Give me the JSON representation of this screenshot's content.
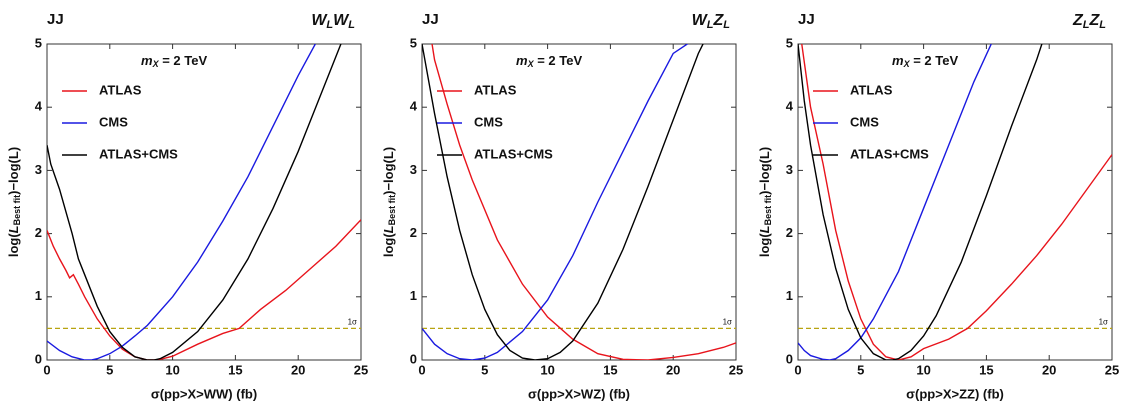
{
  "chart_data": [
    {
      "type": "line",
      "corner_label": "JJ",
      "title_parts": [
        [
          "W",
          "L"
        ],
        [
          "W",
          "L"
        ]
      ],
      "annotation": {
        "pre": "m",
        "sub": "X",
        "post": " = 2 TeV"
      },
      "xlabel": "σ(pp>X>WW) (fb)",
      "ylabel": {
        "pre": "log(",
        "var": "L",
        "sub": "Best fit",
        "post": ")−log(L)"
      },
      "xlim": [
        0,
        25
      ],
      "ylim": [
        0,
        5
      ],
      "xticks": [
        0,
        5,
        10,
        15,
        20,
        25
      ],
      "yticks": [
        0,
        1,
        2,
        3,
        4,
        5
      ],
      "reference_line": {
        "value": 0.5,
        "label": "1σ",
        "color": "#b8a410"
      },
      "series": [
        {
          "name": "ATLAS",
          "color": "#e8141c",
          "x": [
            0,
            0.5,
            1,
            1.5,
            1.8,
            2.1,
            2.5,
            3,
            4,
            5,
            6,
            7,
            8,
            8.5,
            9,
            10,
            12,
            14,
            15.3,
            17,
            19,
            21,
            23,
            25
          ],
          "values": [
            2.05,
            1.8,
            1.6,
            1.42,
            1.3,
            1.35,
            1.2,
            1.0,
            0.65,
            0.38,
            0.17,
            0.05,
            0,
            0,
            0.01,
            0.06,
            0.25,
            0.42,
            0.5,
            0.8,
            1.1,
            1.45,
            1.8,
            2.22
          ]
        },
        {
          "name": "CMS",
          "color": "#1a1ae0",
          "x": [
            0,
            1,
            2,
            3,
            3.5,
            4,
            5,
            6,
            7,
            8,
            10,
            12,
            14,
            16,
            18,
            20,
            21.5
          ],
          "values": [
            0.3,
            0.15,
            0.05,
            0,
            0,
            0.02,
            0.1,
            0.22,
            0.38,
            0.55,
            1.0,
            1.55,
            2.2,
            2.9,
            3.7,
            4.5,
            5.05
          ]
        },
        {
          "name": "ATLAS+CMS",
          "color": "#000000",
          "x": [
            0,
            0.3,
            1,
            2,
            2.5,
            3,
            4,
            5,
            6,
            7,
            8,
            8.5,
            9,
            10,
            12,
            14,
            16,
            18,
            20,
            22,
            23.5
          ],
          "values": [
            3.4,
            3.1,
            2.7,
            2.0,
            1.6,
            1.35,
            0.85,
            0.45,
            0.2,
            0.05,
            0,
            0,
            0.02,
            0.12,
            0.45,
            0.95,
            1.6,
            2.4,
            3.3,
            4.3,
            5.05
          ]
        }
      ]
    },
    {
      "type": "line",
      "corner_label": "JJ",
      "title_parts": [
        [
          "W",
          "L"
        ],
        [
          "Z",
          "L"
        ]
      ],
      "annotation": {
        "pre": "m",
        "sub": "X",
        "post": " = 2 TeV"
      },
      "xlabel": "σ(pp>X>WZ) (fb)",
      "ylabel": {
        "pre": "log(",
        "var": "L",
        "sub": "Best fit",
        "post": ")−log(L)"
      },
      "xlim": [
        0,
        25
      ],
      "ylim": [
        0,
        5
      ],
      "xticks": [
        0,
        5,
        10,
        15,
        20,
        25
      ],
      "yticks": [
        0,
        1,
        2,
        3,
        4,
        5
      ],
      "reference_line": {
        "value": 0.5,
        "label": "1σ",
        "color": "#b8a410"
      },
      "series": [
        {
          "name": "ATLAS",
          "color": "#e8141c",
          "x": [
            0.8,
            1,
            2,
            3,
            4,
            6,
            8,
            10,
            12,
            14,
            16,
            18,
            20,
            22,
            24,
            25
          ],
          "values": [
            5.0,
            4.75,
            4.05,
            3.4,
            2.85,
            1.9,
            1.2,
            0.68,
            0.33,
            0.1,
            0.01,
            0,
            0.04,
            0.1,
            0.2,
            0.27
          ]
        },
        {
          "name": "CMS",
          "color": "#1a1ae0",
          "x": [
            0,
            1,
            2,
            3,
            4,
            5,
            6,
            8,
            10,
            12,
            14,
            16,
            18,
            20,
            21.5
          ],
          "values": [
            0.5,
            0.25,
            0.1,
            0.02,
            0,
            0.03,
            0.12,
            0.45,
            0.95,
            1.65,
            2.5,
            3.3,
            4.1,
            4.85,
            5.05
          ]
        },
        {
          "name": "ATLAS+CMS",
          "color": "#000000",
          "x": [
            0,
            1,
            2,
            3,
            4,
            5,
            6,
            7,
            8,
            9,
            10,
            11,
            12,
            14,
            16,
            18,
            20,
            22,
            22.5
          ],
          "values": [
            5.0,
            3.9,
            2.9,
            2.05,
            1.35,
            0.8,
            0.4,
            0.15,
            0.03,
            0,
            0.02,
            0.12,
            0.3,
            0.9,
            1.75,
            2.75,
            3.8,
            4.85,
            5.05
          ]
        }
      ]
    },
    {
      "type": "line",
      "corner_label": "JJ",
      "title_parts": [
        [
          "Z",
          "L"
        ],
        [
          "Z",
          "L"
        ]
      ],
      "annotation": {
        "pre": "m",
        "sub": "X",
        "post": " = 2 TeV"
      },
      "xlabel": "σ(pp>X>ZZ) (fb)",
      "ylabel": {
        "pre": "log(",
        "var": "L",
        "sub": "Best fit",
        "post": ")−log(L)"
      },
      "xlim": [
        0,
        25
      ],
      "ylim": [
        0,
        5
      ],
      "xticks": [
        0,
        5,
        10,
        15,
        20,
        25
      ],
      "yticks": [
        0,
        1,
        2,
        3,
        4,
        5
      ],
      "reference_line": {
        "value": 0.5,
        "label": "1σ",
        "color": "#b8a410"
      },
      "series": [
        {
          "name": "ATLAS",
          "color": "#e8141c",
          "x": [
            0.3,
            1,
            2,
            3,
            4,
            5,
            6,
            7,
            8,
            9,
            10,
            12,
            13.5,
            15,
            17,
            19,
            21,
            23,
            25
          ],
          "values": [
            5.0,
            4.0,
            3.1,
            2.05,
            1.25,
            0.65,
            0.25,
            0.05,
            0,
            0.05,
            0.18,
            0.33,
            0.5,
            0.78,
            1.2,
            1.65,
            2.15,
            2.7,
            3.25
          ]
        },
        {
          "name": "CMS",
          "color": "#1a1ae0",
          "x": [
            0,
            0.5,
            1,
            2,
            2.5,
            3,
            4,
            5,
            6,
            8,
            10,
            12,
            14,
            15.5
          ],
          "values": [
            0.27,
            0.15,
            0.07,
            0.01,
            0,
            0.02,
            0.15,
            0.35,
            0.65,
            1.4,
            2.4,
            3.4,
            4.4,
            5.05
          ]
        },
        {
          "name": "ATLAS+CMS",
          "color": "#000000",
          "x": [
            0,
            0.5,
            1,
            2,
            3,
            4,
            5,
            6,
            7,
            7.5,
            8,
            9,
            10,
            11,
            13,
            15,
            17,
            19,
            19.5
          ],
          "values": [
            5.0,
            4.1,
            3.4,
            2.3,
            1.45,
            0.8,
            0.35,
            0.1,
            0,
            0,
            0.02,
            0.15,
            0.38,
            0.7,
            1.55,
            2.6,
            3.7,
            4.75,
            5.05
          ]
        }
      ]
    }
  ]
}
